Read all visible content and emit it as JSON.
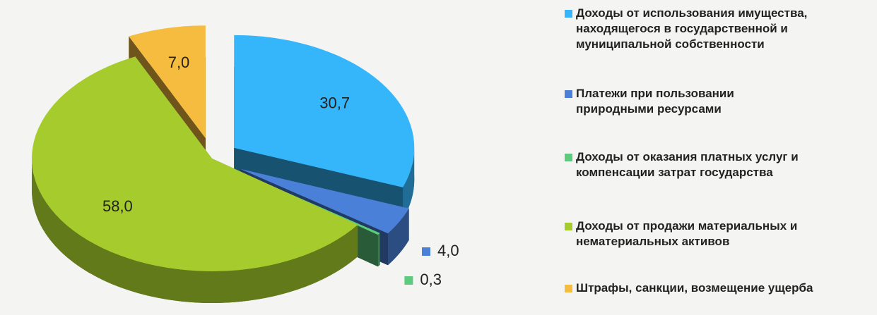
{
  "chart_data": {
    "type": "pie3d",
    "categories": [
      "Доходы от использования имущества, находящегося в государственной и муниципальной собственности",
      "Платежи при пользовании природными ресурсами",
      "Доходы от оказания платных услуг и компенсации затрат государства",
      "Доходы от продажи материальных и нематериальных активов",
      "Штрафы, санкции, возмещение ущерба"
    ],
    "values": [
      30.7,
      4.0,
      0.3,
      58.0,
      7.0
    ],
    "value_labels": [
      "30,7",
      "4,0",
      "0,3",
      "58,0",
      "7,0"
    ],
    "colors": [
      "#35b6fb",
      "#4a80d8",
      "#5ccb7e",
      "#a5cc2c",
      "#f6bc3f"
    ],
    "legend": "right"
  }
}
